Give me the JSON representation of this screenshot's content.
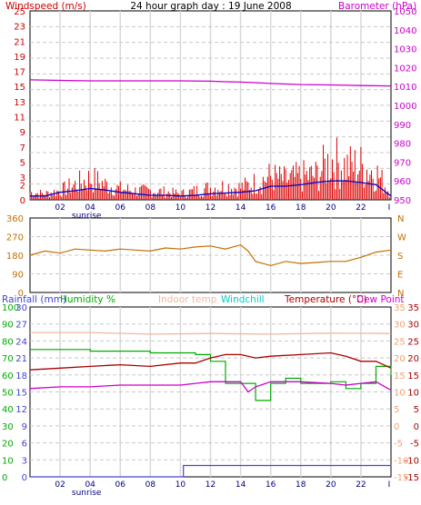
{
  "chart_data": [
    {
      "type": "line",
      "title": "24 hour graph day : 19 June 2008",
      "x_ticks": [
        "02",
        "04",
        "06",
        "08",
        "10",
        "12",
        "14",
        "16",
        "18",
        "20",
        "22"
      ],
      "x_ticks_right": "I",
      "sunrise_label": "sunrise",
      "left_axis": {
        "label": "Windspeed (m/s)",
        "ticks": [
          "25",
          "23",
          "21",
          "19",
          "17",
          "15",
          "13",
          "11",
          "9",
          "7",
          "5",
          "3",
          "2",
          "0"
        ],
        "ylim": [
          0,
          25
        ]
      },
      "right_axis": {
        "label": "Barometer (hPa)",
        "ticks": [
          "1050",
          "1040",
          "1030",
          "1020",
          "1010",
          "1000",
          "990",
          "980",
          "970",
          "960",
          "950"
        ],
        "ylim": [
          950,
          1050
        ]
      },
      "series": [
        {
          "name": "Windspeed",
          "color": "#dd0000",
          "x": [
            0,
            1,
            2,
            3,
            4,
            5,
            6,
            7,
            8,
            9,
            10,
            11,
            12,
            13,
            14,
            15,
            16,
            17,
            18,
            19,
            20,
            21,
            22,
            23,
            24
          ],
          "values": [
            1.2,
            1.0,
            1.5,
            2.5,
            3.5,
            2.5,
            1.8,
            1.5,
            1.5,
            1.3,
            1.0,
            1.5,
            2.0,
            2.2,
            2.0,
            2.8,
            3.8,
            3.2,
            3.8,
            4.0,
            6.5,
            5.5,
            5.5,
            4.5,
            1.0
          ]
        },
        {
          "x": [
            0,
            1,
            2,
            3,
            4,
            5,
            6,
            7,
            8,
            9,
            10,
            11,
            12,
            13,
            14,
            15,
            16,
            17,
            18,
            19,
            20,
            21,
            22,
            23,
            24
          ],
          "values": [
            0.5,
            0.5,
            1.0,
            1.2,
            1.5,
            1.3,
            1.0,
            0.8,
            0.6,
            0.6,
            0.5,
            0.6,
            0.8,
            0.9,
            1.0,
            1.2,
            1.8,
            1.8,
            2.0,
            2.3,
            2.5,
            2.5,
            2.3,
            2.0,
            0.5
          ]
        },
        {
          "name": "Barometer",
          "color": "#cc00cc",
          "x": [
            0,
            2,
            4,
            6,
            8,
            10,
            12,
            13,
            14,
            15,
            16,
            18,
            20,
            22,
            24
          ],
          "values": [
            1013.5,
            1013.2,
            1013.0,
            1013.0,
            1013.0,
            1013.0,
            1012.8,
            1012.5,
            1012.3,
            1012.0,
            1011.6,
            1011.0,
            1010.8,
            1010.5,
            1010.3
          ]
        }
      ]
    },
    {
      "type": "line",
      "y_ticks": [
        "360",
        "270",
        "180",
        "90",
        "0"
      ],
      "ylim": [
        0,
        360
      ],
      "right_labels": [
        "N",
        "W",
        "S",
        "E",
        "N"
      ],
      "series": [
        {
          "name": "Wind direction",
          "color": "#c07000",
          "x": [
            0,
            1,
            2,
            3,
            4,
            5,
            6,
            7,
            8,
            9,
            10,
            11,
            12,
            13,
            14,
            14.5,
            15,
            16,
            17,
            18,
            19,
            20,
            21,
            22,
            23,
            24
          ],
          "values": [
            180,
            200,
            190,
            210,
            205,
            200,
            210,
            205,
            200,
            215,
            210,
            220,
            225,
            210,
            230,
            200,
            150,
            130,
            150,
            140,
            145,
            150,
            150,
            170,
            195,
            205
          ]
        }
      ]
    },
    {
      "type": "line",
      "x_ticks": [
        "02",
        "04",
        "06",
        "08",
        "10",
        "12",
        "14",
        "16",
        "18",
        "20",
        "22"
      ],
      "x_ticks_right": "I",
      "sunrise_label": "sunrise",
      "legend": [
        "Rainfall (mm)",
        "Humidity %",
        "Indoor temp",
        "Windchill",
        "Temperature (°C)",
        "Dew Point"
      ],
      "rain_axis": {
        "label": "Rainfall (mm)",
        "ticks": [
          "30",
          "27",
          "24",
          "21",
          "18",
          "15",
          "12",
          "9",
          "6",
          "3",
          "0"
        ],
        "ylim": [
          0,
          30
        ]
      },
      "humidity_axis": {
        "label": "Humidity %",
        "ticks": [
          "100",
          "90",
          "80",
          "70",
          "60",
          "50",
          "40",
          "30",
          "20",
          "10",
          "0"
        ],
        "ylim": [
          0,
          100
        ]
      },
      "temp_axis": {
        "label": "Temperature (°C)",
        "ticks": [
          "35",
          "30",
          "25",
          "20",
          "15",
          "10",
          "5",
          "0",
          "-5",
          "-10",
          "-15"
        ],
        "ylim": [
          -15,
          35
        ]
      },
      "right_inner_ticks": [
        "35",
        "30",
        "25",
        "20",
        "15",
        "10",
        "5",
        "0",
        "-5",
        "-10",
        "-15"
      ],
      "series": [
        {
          "name": "Rainfall (mm)",
          "color": "#4444cc",
          "axis": "rain",
          "x": [
            0,
            10,
            10.2,
            24
          ],
          "values": [
            0,
            0,
            2,
            2.2
          ]
        },
        {
          "name": "Humidity %",
          "color": "#00aa00",
          "axis": "humidity",
          "x": [
            0,
            2,
            4,
            6,
            8,
            10,
            11,
            12,
            13,
            14,
            15,
            16,
            17,
            18,
            19,
            20,
            21,
            22,
            23,
            24
          ],
          "values": [
            75,
            75,
            74,
            74,
            73,
            73,
            72,
            68,
            55,
            55,
            45,
            55,
            58,
            55,
            55,
            56,
            52,
            55,
            65,
            60
          ]
        },
        {
          "name": "Indoor temp",
          "color": "#f0b8a0",
          "axis": "temp",
          "x": [
            0,
            4,
            8,
            12,
            16,
            20,
            24
          ],
          "values": [
            27.5,
            27.5,
            27.0,
            27.2,
            27.0,
            27.3,
            27.2
          ]
        },
        {
          "name": "Temperature (°C)",
          "color": "#aa0000",
          "axis": "temp",
          "x": [
            0,
            2,
            4,
            6,
            8,
            10,
            11,
            12,
            13,
            14,
            15,
            16,
            18,
            20,
            21,
            22,
            23,
            24
          ],
          "values": [
            16.5,
            17.0,
            17.5,
            18.0,
            17.5,
            18.5,
            18.5,
            20.0,
            21.0,
            21.0,
            20.0,
            20.5,
            21.0,
            21.5,
            20.5,
            19.0,
            19.0,
            17.0
          ]
        },
        {
          "name": "Dew Point",
          "color": "#cc00cc",
          "axis": "temp",
          "x": [
            0,
            2,
            4,
            6,
            8,
            10,
            11,
            12,
            13,
            14,
            14.5,
            15,
            16,
            18,
            20,
            21,
            22,
            23,
            24
          ],
          "values": [
            11.0,
            11.5,
            11.5,
            12.0,
            12.0,
            12.0,
            12.5,
            13.0,
            13.0,
            13.0,
            10.0,
            11.5,
            13.0,
            13.0,
            12.5,
            12.0,
            12.5,
            13.0,
            10.5
          ]
        }
      ]
    }
  ]
}
